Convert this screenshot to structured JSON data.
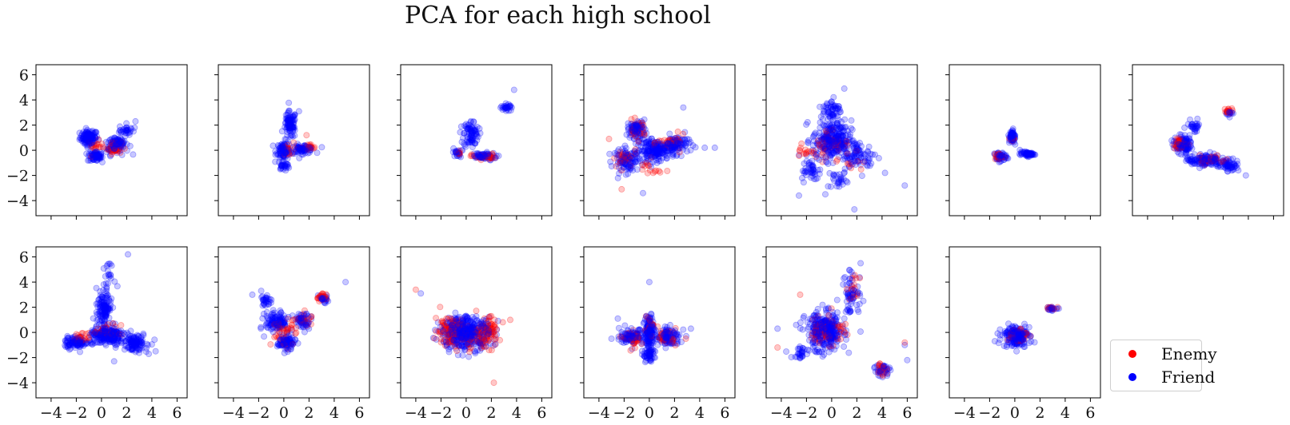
{
  "title": "PCA for each high school",
  "chart_data": {
    "type": "scatter",
    "title": "PCA for each high school",
    "layout": "2 rows x 7 columns, 13 subplots, shared axes",
    "xlim": [
      -5.2,
      6.8
    ],
    "ylim": [
      -5.2,
      6.8
    ],
    "xticks": [
      -4,
      -2,
      0,
      2,
      4,
      6
    ],
    "yticks": [
      -4,
      -2,
      0,
      2,
      4,
      6
    ],
    "xtick_labels": [
      "−4",
      "−2",
      "0",
      "2",
      "4",
      "6"
    ],
    "ytick_labels": [
      "−4",
      "−2",
      "0",
      "2",
      "4",
      "6"
    ],
    "legend_position": "bottom-right",
    "series": [
      {
        "name": "Enemy",
        "color": "#ff0000"
      },
      {
        "name": "Friend",
        "color": "#0000ff"
      }
    ],
    "subplots": [
      {
        "clusters": [
          [
            -1,
            1,
            0.6,
            0.5,
            80
          ],
          [
            -0.5,
            -0.5,
            0.5,
            0.35,
            50
          ],
          [
            1.2,
            0.5,
            0.8,
            0.7,
            70
          ],
          [
            2,
            1.6,
            0.5,
            0.4,
            20
          ]
        ],
        "enemy_clusters": [
          [
            1,
            0.2,
            0.5,
            0.4,
            40
          ],
          [
            -0.5,
            0.3,
            0.5,
            0.4,
            15
          ]
        ],
        "outliers_friend": [
          [
            2.7,
            2.3
          ]
        ],
        "outliers_enemy": []
      },
      {
        "clusters": [
          [
            0.5,
            2,
            0.4,
            0.9,
            70
          ],
          [
            0,
            0,
            0.5,
            0.6,
            60
          ],
          [
            1.5,
            0.1,
            0.8,
            0.3,
            50
          ],
          [
            0,
            -1.2,
            0.4,
            0.3,
            20
          ]
        ],
        "enemy_clusters": [
          [
            0.3,
            0,
            0.4,
            0.5,
            15
          ],
          [
            2,
            0.2,
            0.5,
            0.25,
            15
          ]
        ],
        "outliers_friend": [
          [
            1.2,
            3.1
          ]
        ],
        "outliers_enemy": [
          [
            1.8,
            1.2
          ]
        ]
      },
      {
        "clusters": [
          [
            0.4,
            1.3,
            0.5,
            0.9,
            60
          ],
          [
            1.3,
            -0.5,
            0.9,
            0.25,
            50
          ],
          [
            -0.7,
            -0.2,
            0.3,
            0.3,
            15
          ],
          [
            3.2,
            3.4,
            0.4,
            0.3,
            20
          ]
        ],
        "enemy_clusters": [
          [
            1.4,
            -0.5,
            0.8,
            0.2,
            25
          ],
          [
            -0.6,
            -0.2,
            0.3,
            0.25,
            8
          ]
        ],
        "outliers_friend": [
          [
            3.8,
            4.8
          ]
        ],
        "outliers_enemy": []
      },
      {
        "clusters": [
          [
            -1,
            1.7,
            0.6,
            0.6,
            60
          ],
          [
            0.5,
            0,
            1.3,
            0.7,
            140
          ],
          [
            -1.8,
            -0.8,
            0.9,
            0.8,
            70
          ],
          [
            2.2,
            0.5,
            0.9,
            0.6,
            60
          ]
        ],
        "enemy_clusters": [
          [
            -1,
            1.6,
            0.6,
            0.6,
            25
          ],
          [
            1.8,
            0.6,
            0.9,
            0.5,
            30
          ],
          [
            -2,
            -0.7,
            0.9,
            0.7,
            25
          ],
          [
            0,
            -1.5,
            0.8,
            0.6,
            15
          ]
        ],
        "outliers_friend": [
          [
            -0.5,
            -3.4
          ],
          [
            4.4,
            0.2
          ],
          [
            2.7,
            3.4
          ],
          [
            5.2,
            0.2
          ]
        ],
        "outliers_enemy": [
          [
            -3.2,
            0.9
          ],
          [
            -2.2,
            -3.1
          ]
        ]
      },
      {
        "clusters": [
          [
            0,
            0.8,
            1.3,
            1.3,
            200
          ],
          [
            0,
            3.2,
            0.6,
            0.8,
            40
          ],
          [
            -1.8,
            -1.5,
            0.8,
            0.7,
            30
          ],
          [
            2.2,
            -0.5,
            1.2,
            1,
            60
          ],
          [
            0.5,
            -2.3,
            0.7,
            0.6,
            20
          ]
        ],
        "enemy_clusters": [
          [
            0,
            0.5,
            1.2,
            1.1,
            40
          ],
          [
            -2,
            0,
            0.7,
            0.7,
            15
          ],
          [
            1.5,
            -1,
            0.8,
            0.5,
            10
          ]
        ],
        "outliers_friend": [
          [
            1,
            4.9
          ],
          [
            5.8,
            -2.8
          ],
          [
            -2.6,
            -3.6
          ],
          [
            1.8,
            -4.7
          ],
          [
            -0.5,
            -3.5
          ]
        ],
        "outliers_enemy": []
      },
      {
        "clusters": [
          [
            -0.2,
            1.1,
            0.2,
            0.5,
            45
          ],
          [
            -1.2,
            -0.5,
            0.4,
            0.3,
            35
          ],
          [
            1,
            -0.3,
            0.5,
            0.15,
            40
          ]
        ],
        "enemy_clusters": [
          [
            -1.3,
            -0.5,
            0.3,
            0.25,
            20
          ],
          [
            -0.2,
            0.9,
            0.2,
            0.3,
            6
          ]
        ],
        "outliers_friend": [],
        "outliers_enemy": []
      },
      {
        "clusters": [
          [
            -1.2,
            0.5,
            0.6,
            0.6,
            80
          ],
          [
            0.5,
            -0.8,
            1.2,
            0.45,
            90
          ],
          [
            2.5,
            -1.2,
            0.7,
            0.4,
            40
          ],
          [
            -0.3,
            1.9,
            0.4,
            0.6,
            20
          ],
          [
            2.5,
            3,
            0.3,
            0.2,
            10
          ]
        ],
        "enemy_clusters": [
          [
            -1.4,
            0.5,
            0.45,
            0.35,
            45
          ],
          [
            2.5,
            3.1,
            0.3,
            0.2,
            15
          ],
          [
            1,
            -0.7,
            1,
            0.4,
            25
          ]
        ],
        "outliers_friend": [
          [
            3.8,
            -2
          ]
        ],
        "outliers_enemy": []
      },
      {
        "clusters": [
          [
            -2,
            -0.8,
            0.8,
            0.4,
            70
          ],
          [
            0.2,
            1.8,
            0.5,
            1.3,
            90
          ],
          [
            0.5,
            -0.3,
            1.2,
            0.6,
            160
          ],
          [
            2.6,
            -0.8,
            0.9,
            0.6,
            80
          ],
          [
            0.5,
            4.5,
            0.4,
            0.8,
            15
          ]
        ],
        "enemy_clusters": [
          [
            -1.5,
            -0.4,
            0.7,
            0.3,
            20
          ],
          [
            0.5,
            0,
            0.9,
            0.5,
            25
          ]
        ],
        "outliers_friend": [
          [
            2.1,
            6.2
          ],
          [
            4.3,
            -1.5
          ],
          [
            1,
            -2.3
          ]
        ],
        "outliers_enemy": []
      },
      {
        "clusters": [
          [
            -1.5,
            2.5,
            0.4,
            0.4,
            20
          ],
          [
            -0.5,
            0.8,
            0.8,
            0.7,
            80
          ],
          [
            0.2,
            -0.8,
            0.6,
            0.5,
            60
          ],
          [
            1.5,
            0.9,
            0.6,
            0.6,
            40
          ],
          [
            3.1,
            2.7,
            0.3,
            0.3,
            20
          ]
        ],
        "enemy_clusters": [
          [
            0,
            0,
            0.9,
            0.9,
            40
          ],
          [
            3,
            2.8,
            0.35,
            0.3,
            20
          ],
          [
            1.8,
            1,
            0.5,
            0.5,
            15
          ]
        ],
        "outliers_friend": [
          [
            4.9,
            4
          ],
          [
            -1.8,
            3.3
          ],
          [
            -2.5,
            3
          ]
        ],
        "outliers_enemy": []
      },
      {
        "clusters": [
          [
            0,
            0,
            1.7,
            1.1,
            320
          ]
        ],
        "enemy_clusters": [
          [
            -1.4,
            0.2,
            0.9,
            1,
            80
          ],
          [
            1.6,
            0,
            0.9,
            1,
            80
          ],
          [
            0,
            -0.5,
            1.2,
            0.9,
            40
          ]
        ],
        "outliers_friend": [
          [
            -3.6,
            3.1
          ]
        ],
        "outliers_enemy": [
          [
            -4,
            3.4
          ],
          [
            2.2,
            -4
          ],
          [
            3.5,
            1
          ]
        ]
      },
      {
        "clusters": [
          [
            0,
            0,
            0.4,
            1.4,
            100
          ],
          [
            -1.4,
            -0.3,
            0.8,
            0.5,
            70
          ],
          [
            1.5,
            -0.4,
            0.8,
            0.6,
            80
          ],
          [
            0,
            -1.8,
            0.4,
            0.5,
            30
          ]
        ],
        "enemy_clusters": [
          [
            -1.2,
            -0.6,
            0.6,
            0.5,
            30
          ],
          [
            1.3,
            -0.3,
            0.7,
            0.5,
            25
          ],
          [
            0,
            0.5,
            0.4,
            0.7,
            15
          ]
        ],
        "outliers_friend": [
          [
            0,
            4
          ],
          [
            3.3,
            0.3
          ],
          [
            -3,
            -0.5
          ],
          [
            -2.5,
            1.1
          ]
        ],
        "outliers_enemy": [
          [
            2.9,
            -0.5
          ]
        ]
      },
      {
        "clusters": [
          [
            -0.5,
            0,
            1.3,
            1.3,
            220
          ],
          [
            1.6,
            3,
            0.7,
            1.5,
            45
          ],
          [
            4,
            -2.9,
            0.5,
            0.5,
            25
          ],
          [
            -2.5,
            -1.6,
            0.6,
            0.5,
            20
          ]
        ],
        "enemy_clusters": [
          [
            -0.3,
            0.2,
            1.2,
            1.1,
            60
          ],
          [
            4,
            -2.9,
            0.5,
            0.5,
            20
          ],
          [
            1.8,
            3.4,
            0.5,
            0.9,
            15
          ]
        ],
        "outliers_friend": [
          [
            6,
            -2.2
          ],
          [
            5.8,
            -1
          ],
          [
            2.3,
            5.5
          ],
          [
            -4.3,
            0.3
          ]
        ],
        "outliers_enemy": [
          [
            5.8,
            -0.8
          ],
          [
            -4.3,
            -1.2
          ],
          [
            -2.5,
            3
          ]
        ]
      },
      {
        "clusters": [
          [
            0.1,
            -0.3,
            0.9,
            0.7,
            140
          ],
          [
            2.9,
            1.9,
            0.3,
            0.15,
            15
          ]
        ],
        "enemy_clusters": [
          [
            0.2,
            -0.2,
            0.7,
            0.5,
            40
          ],
          [
            2.8,
            1.9,
            0.3,
            0.15,
            10
          ]
        ],
        "outliers_friend": [
          [
            3.5,
            1.9
          ]
        ],
        "outliers_enemy": []
      }
    ]
  },
  "legend": {
    "items": [
      {
        "label": "Enemy",
        "color": "#ff0000"
      },
      {
        "label": "Friend",
        "color": "#0000ff"
      }
    ]
  }
}
